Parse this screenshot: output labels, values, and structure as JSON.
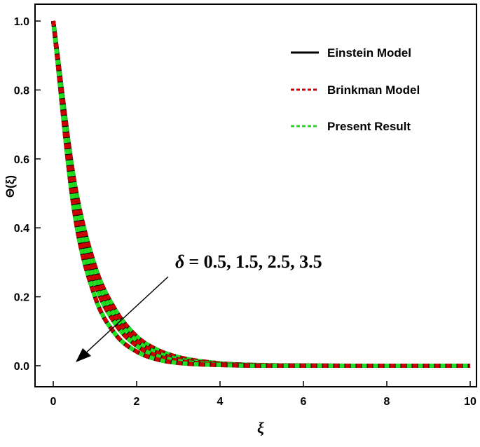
{
  "chart_data": {
    "type": "line",
    "xlabel": "ξ",
    "ylabel": "Θ(ξ)",
    "xlim": [
      0,
      10
    ],
    "ylim": [
      0,
      1.0
    ],
    "xticks": [
      "0",
      "2",
      "4",
      "6",
      "8",
      "10"
    ],
    "yticks": [
      "0.0",
      "0.2",
      "0.4",
      "0.6",
      "0.8",
      "1.0"
    ],
    "grid": false,
    "legend_position": "top-right",
    "legend": [
      {
        "label": "Einstein Model",
        "color": "#000000",
        "style": "solid"
      },
      {
        "label": "Brinkman Model",
        "color": "#cc0000",
        "style": "dashed"
      },
      {
        "label": "Present Result",
        "color": "#22dd22",
        "style": "dashed"
      }
    ],
    "annotation": {
      "symbol": "δ",
      "text": "= 0.5, 1.5, 2.5, 3.5",
      "arrow_direction": "down-left"
    },
    "x": [
      0,
      0.5,
      1,
      1.5,
      2,
      2.5,
      3,
      4,
      5,
      6,
      8,
      10
    ],
    "series": [
      {
        "param": "0.5",
        "values": [
          1.0,
          0.54,
          0.29,
          0.16,
          0.085,
          0.046,
          0.025,
          0.007,
          0.002,
          0.0005,
          0.0,
          0.0
        ]
      },
      {
        "param": "1.5",
        "values": [
          1.0,
          0.52,
          0.27,
          0.14,
          0.072,
          0.037,
          0.019,
          0.005,
          0.001,
          0.0003,
          0.0,
          0.0
        ]
      },
      {
        "param": "2.5",
        "values": [
          1.0,
          0.49,
          0.24,
          0.12,
          0.058,
          0.028,
          0.014,
          0.003,
          0.001,
          0.0002,
          0.0,
          0.0
        ]
      },
      {
        "param": "3.5",
        "values": [
          1.0,
          0.45,
          0.2,
          0.09,
          0.041,
          0.018,
          0.008,
          0.002,
          0.0,
          0.0,
          0.0,
          0.0
        ]
      }
    ]
  }
}
